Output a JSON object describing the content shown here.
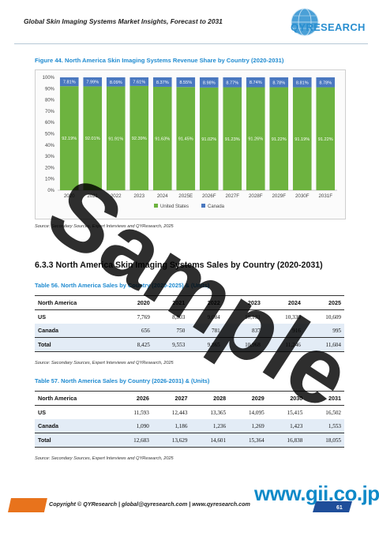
{
  "header": {
    "title": "Global Skin Imaging Systems Market Insights, Forecast to 2031",
    "logo_text": "QYRESEARCH"
  },
  "figure": {
    "caption": "Figure 44.   North America Skin Imaging Systems Revenue Share by Country (2020-2031)",
    "source": "Source: Secondary Sources, Expert Interviews and QYResearch, 2025"
  },
  "chart_data": {
    "type": "bar",
    "stacked": true,
    "categories": [
      "2020",
      "2021",
      "2022",
      "2023",
      "2024",
      "2025E",
      "2026F",
      "2027F",
      "2028F",
      "2029F",
      "2030F",
      "2031F"
    ],
    "series": [
      {
        "name": "United States",
        "color": "#6db33f",
        "values": [
          92.19,
          92.01,
          91.91,
          92.39,
          91.63,
          91.45,
          91.02,
          91.23,
          91.26,
          91.22,
          91.19,
          91.22
        ],
        "labels": [
          "92.19%",
          "92.01%",
          "91.91%",
          "92.39%",
          "91.63%",
          "91.45%",
          "91.02%",
          "91.23%",
          "91.26%",
          "91.22%",
          "91.19%",
          "91.22%"
        ]
      },
      {
        "name": "Canada",
        "color": "#4a78c0",
        "values": [
          7.81,
          7.99,
          8.09,
          7.61,
          8.37,
          8.55,
          8.98,
          8.77,
          8.74,
          8.78,
          8.81,
          8.78
        ],
        "labels": [
          "7.81%",
          "7.99%",
          "8.09%",
          "7.61%",
          "8.37%",
          "8.55%",
          "8.98%",
          "8.77%",
          "8.74%",
          "8.78%",
          "8.81%",
          "8.78%"
        ]
      }
    ],
    "y_ticks": [
      "0%",
      "10%",
      "20%",
      "30%",
      "40%",
      "50%",
      "60%",
      "70%",
      "80%",
      "90%",
      "100%"
    ],
    "ylim": [
      0,
      100
    ],
    "legend_position": "bottom",
    "grid": false
  },
  "section": {
    "heading": "6.3.3  North America Skin Imaging Systems Sales by Country (2020-2031)"
  },
  "table56": {
    "caption": "Table 56.   North America Sales by Country (2020-2025) & (Units)",
    "headers": [
      "North America",
      "2020",
      "2021",
      "2022",
      "2023",
      "2024",
      "2025"
    ],
    "rows": [
      [
        "US",
        "7,769",
        "8,803",
        "9,084",
        "10,131",
        "10,330",
        "10,609"
      ],
      [
        "Canada",
        "656",
        "750",
        "781",
        "837",
        "916",
        "995"
      ]
    ],
    "total": [
      "Total",
      "8,425",
      "9,553",
      "9,865",
      "10,968",
      "11,246",
      "11,604"
    ],
    "source": "Source: Secondary Sources, Expert Interviews and QYResearch, 2025"
  },
  "table57": {
    "caption": "Table 57.   North America Sales by Country (2026-2031) & (Units)",
    "headers": [
      "North America",
      "2026",
      "2027",
      "2028",
      "2029",
      "2030",
      "2031"
    ],
    "rows": [
      [
        "US",
        "11,593",
        "12,443",
        "13,365",
        "14,095",
        "15,415",
        "16,502"
      ],
      [
        "Canada",
        "1,090",
        "1,186",
        "1,236",
        "1,269",
        "1,423",
        "1,553"
      ]
    ],
    "total": [
      "Total",
      "12,683",
      "13,629",
      "14,601",
      "15,364",
      "16,838",
      "18,055"
    ],
    "source": "Source: Secondary Sources, Expert Interviews and QYResearch, 2025"
  },
  "footer": {
    "text": "Copyright © QYResearch | global@qyresearch.com | www.qyresearch.com",
    "page_number": "61",
    "gii_text": "www.gii.co.jp"
  },
  "watermark": "Sample",
  "colors": {
    "accent_blue": "#1e8ad0",
    "table_stripe": "#e3ecf6",
    "footer_blue": "#1f4e9a",
    "footer_orange": "#e8731c"
  }
}
